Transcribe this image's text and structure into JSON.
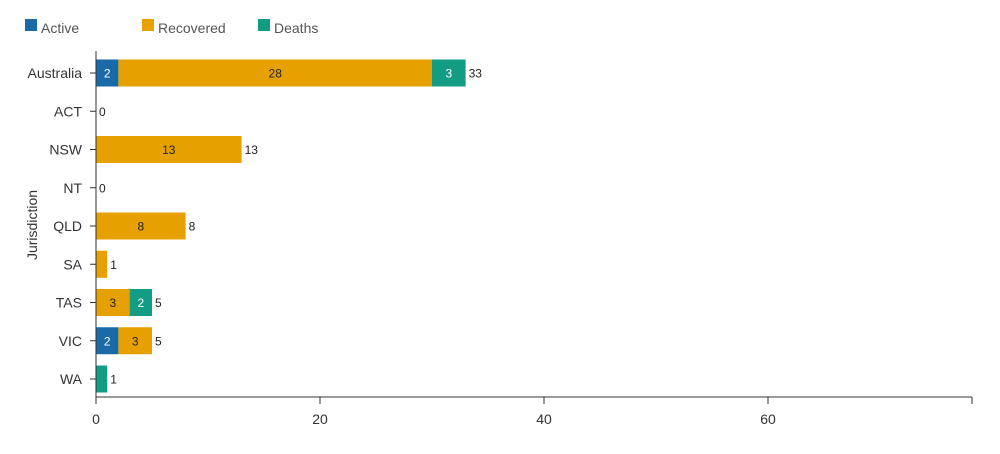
{
  "chart_data": {
    "type": "bar",
    "orientation": "horizontal",
    "stacked": true,
    "categories": [
      "Australia",
      "ACT",
      "NSW",
      "NT",
      "QLD",
      "SA",
      "TAS",
      "VIC",
      "WA"
    ],
    "series": [
      {
        "name": "Active",
        "color": "#1a6aa8",
        "label_color": "#ffffff",
        "values": [
          2,
          0,
          0,
          0,
          0,
          0,
          0,
          2,
          0
        ]
      },
      {
        "name": "Recovered",
        "color": "#e6a100",
        "label_color": "#222222",
        "values": [
          28,
          0,
          13,
          0,
          8,
          1,
          3,
          3,
          0
        ]
      },
      {
        "name": "Deaths",
        "color": "#129c84",
        "label_color": "#ffffff",
        "values": [
          3,
          0,
          0,
          0,
          0,
          0,
          2,
          0,
          1
        ]
      }
    ],
    "totals": [
      33,
      0,
      13,
      0,
      8,
      1,
      5,
      5,
      1
    ],
    "ylabel": "Jurisdiction",
    "xlabel": "",
    "xlim": [
      0,
      78
    ],
    "xticks": [
      0,
      20,
      40,
      60
    ],
    "legend_position": "top-left",
    "grid": false
  }
}
